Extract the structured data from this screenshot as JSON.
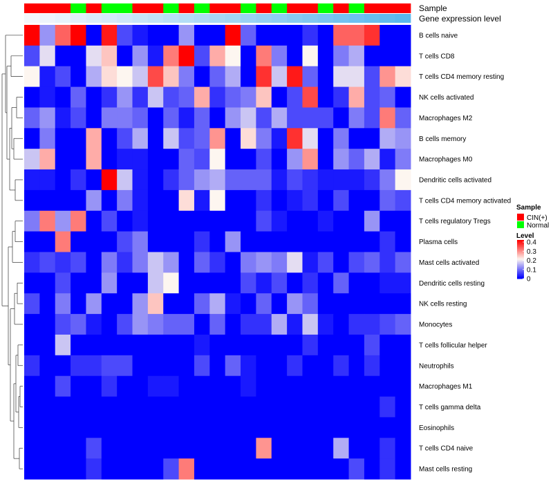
{
  "chart_data": {
    "type": "heatmap",
    "annotation_tracks": [
      "Sample",
      "Gene expression level"
    ],
    "sample_groups": [
      "CIN(+)",
      "CIN(+)",
      "CIN(+)",
      "Normal",
      "CIN(+)",
      "Normal",
      "Normal",
      "CIN(+)",
      "CIN(+)",
      "Normal",
      "CIN(+)",
      "Normal",
      "CIN(+)",
      "CIN(+)",
      "Normal",
      "CIN(+)",
      "Normal",
      "CIN(+)",
      "CIN(+)",
      "Normal",
      "CIN(+)",
      "Normal",
      "CIN(+)",
      "CIN(+)",
      "CIN(+)"
    ],
    "gene_expression_level": [
      0.0,
      0.04,
      0.08,
      0.12,
      0.16,
      0.2,
      0.24,
      0.28,
      0.32,
      0.36,
      0.4,
      0.44,
      0.48,
      0.52,
      0.56,
      0.6,
      0.64,
      0.68,
      0.72,
      0.76,
      0.8,
      0.84,
      0.88,
      0.92,
      0.96
    ],
    "rows": [
      "B cells naive",
      "T cells CD8",
      "T cells CD4 memory resting",
      "NK cells activated",
      "Macrophages M2",
      "B cells memory",
      "Macrophages M0",
      "Dendritic cells activated",
      "T cells CD4 memory activated",
      "T cells regulatory  Tregs",
      "Plasma cells",
      "Mast cells activated",
      "Dendritic cells resting",
      "NK cells resting",
      "Monocytes",
      "T cells follicular helper",
      "Neutrophils",
      "Macrophages M1",
      "T cells gamma delta",
      "Eosinophils",
      "T cells CD4 naive",
      "Mast cells resting"
    ],
    "values": [
      [
        0.4,
        0.12,
        0.32,
        0.4,
        0.0,
        0.38,
        0.06,
        0.02,
        0.0,
        0.0,
        0.12,
        0.0,
        0.0,
        0.4,
        0.08,
        0.0,
        0.0,
        0.0,
        0.04,
        0.0,
        0.32,
        0.32,
        0.36,
        0.0,
        0.0
      ],
      [
        0.06,
        0.18,
        0.0,
        0.0,
        0.18,
        0.24,
        0.0,
        0.12,
        0.02,
        0.3,
        0.4,
        0.06,
        0.26,
        0.2,
        0.0,
        0.3,
        0.1,
        0.0,
        0.2,
        0.0,
        0.1,
        0.14,
        0.0,
        0.0,
        0.0
      ],
      [
        0.2,
        0.02,
        0.06,
        0.0,
        0.14,
        0.22,
        0.2,
        0.16,
        0.34,
        0.24,
        0.1,
        0.0,
        0.08,
        0.14,
        0.0,
        0.36,
        0.16,
        0.38,
        0.08,
        0.0,
        0.18,
        0.18,
        0.06,
        0.28,
        0.22
      ],
      [
        0.0,
        0.02,
        0.0,
        0.08,
        0.0,
        0.04,
        0.12,
        0.04,
        0.16,
        0.06,
        0.08,
        0.26,
        0.04,
        0.08,
        0.1,
        0.24,
        0.0,
        0.06,
        0.34,
        0.0,
        0.04,
        0.26,
        0.06,
        0.08,
        0.0
      ],
      [
        0.08,
        0.12,
        0.02,
        0.06,
        0.0,
        0.1,
        0.1,
        0.08,
        0.0,
        0.08,
        0.02,
        0.08,
        0.0,
        0.12,
        0.16,
        0.06,
        0.14,
        0.06,
        0.06,
        0.06,
        0.0,
        0.1,
        0.06,
        0.3,
        0.08
      ],
      [
        0.0,
        0.1,
        0.0,
        0.0,
        0.26,
        0.0,
        0.06,
        0.14,
        0.0,
        0.16,
        0.06,
        0.08,
        0.28,
        0.0,
        0.22,
        0.1,
        0.02,
        0.36,
        0.18,
        0.0,
        0.1,
        0.0,
        0.0,
        0.14,
        0.12
      ],
      [
        0.16,
        0.26,
        0.0,
        0.0,
        0.26,
        0.0,
        0.02,
        0.02,
        0.0,
        0.0,
        0.08,
        0.06,
        0.2,
        0.0,
        0.0,
        0.06,
        0.0,
        0.12,
        0.28,
        0.0,
        0.12,
        0.08,
        0.14,
        0.02,
        0.1
      ],
      [
        0.02,
        0.02,
        0.0,
        0.04,
        0.0,
        0.4,
        0.16,
        0.02,
        0.0,
        0.04,
        0.08,
        0.12,
        0.14,
        0.08,
        0.08,
        0.08,
        0.02,
        0.06,
        0.04,
        0.02,
        0.02,
        0.02,
        0.04,
        0.1,
        0.2
      ],
      [
        0.0,
        0.0,
        0.0,
        0.0,
        0.12,
        0.0,
        0.1,
        0.02,
        0.0,
        0.0,
        0.22,
        0.02,
        0.2,
        0.0,
        0.0,
        0.04,
        0.0,
        0.02,
        0.04,
        0.0,
        0.06,
        0.0,
        0.0,
        0.08,
        0.06
      ],
      [
        0.1,
        0.3,
        0.12,
        0.3,
        0.0,
        0.06,
        0.0,
        0.02,
        0.0,
        0.0,
        0.0,
        0.0,
        0.0,
        0.0,
        0.0,
        0.06,
        0.02,
        0.0,
        0.0,
        0.02,
        0.0,
        0.0,
        0.12,
        0.0,
        0.0
      ],
      [
        0.0,
        0.0,
        0.3,
        0.0,
        0.0,
        0.0,
        0.06,
        0.1,
        0.0,
        0.0,
        0.0,
        0.04,
        0.0,
        0.12,
        0.0,
        0.0,
        0.0,
        0.0,
        0.0,
        0.0,
        0.0,
        0.0,
        0.0,
        0.04,
        0.0
      ],
      [
        0.04,
        0.06,
        0.04,
        0.06,
        0.0,
        0.1,
        0.04,
        0.1,
        0.16,
        0.12,
        0.0,
        0.08,
        0.04,
        0.0,
        0.1,
        0.12,
        0.1,
        0.18,
        0.02,
        0.06,
        0.0,
        0.06,
        0.08,
        0.04,
        0.08
      ],
      [
        0.0,
        0.0,
        0.06,
        0.0,
        0.0,
        0.12,
        0.0,
        0.0,
        0.16,
        0.2,
        0.0,
        0.0,
        0.0,
        0.0,
        0.06,
        0.02,
        0.06,
        0.0,
        0.04,
        0.0,
        0.08,
        0.0,
        0.0,
        0.02,
        0.02
      ],
      [
        0.06,
        0.0,
        0.1,
        0.0,
        0.12,
        0.0,
        0.0,
        0.12,
        0.24,
        0.0,
        0.0,
        0.08,
        0.14,
        0.02,
        0.0,
        0.08,
        0.0,
        0.12,
        0.08,
        0.0,
        0.0,
        0.0,
        0.0,
        0.0,
        0.0
      ],
      [
        0.0,
        0.0,
        0.06,
        0.08,
        0.02,
        0.0,
        0.06,
        0.12,
        0.1,
        0.08,
        0.08,
        0.0,
        0.08,
        0.0,
        0.04,
        0.04,
        0.14,
        0.02,
        0.16,
        0.02,
        0.0,
        0.04,
        0.04,
        0.06,
        0.08
      ],
      [
        0.0,
        0.0,
        0.16,
        0.0,
        0.0,
        0.0,
        0.0,
        0.0,
        0.0,
        0.0,
        0.0,
        0.02,
        0.0,
        0.0,
        0.0,
        0.0,
        0.0,
        0.0,
        0.04,
        0.0,
        0.0,
        0.0,
        0.06,
        0.0,
        0.0
      ],
      [
        0.04,
        0.0,
        0.0,
        0.04,
        0.04,
        0.06,
        0.06,
        0.0,
        0.0,
        0.0,
        0.0,
        0.06,
        0.0,
        0.08,
        0.02,
        0.0,
        0.0,
        0.04,
        0.0,
        0.0,
        0.04,
        0.0,
        0.04,
        0.0,
        0.0
      ],
      [
        0.0,
        0.0,
        0.06,
        0.0,
        0.0,
        0.04,
        0.0,
        0.0,
        0.02,
        0.02,
        0.0,
        0.0,
        0.0,
        0.0,
        0.02,
        0.0,
        0.0,
        0.0,
        0.0,
        0.0,
        0.0,
        0.0,
        0.0,
        0.0,
        0.0
      ],
      [
        0.0,
        0.0,
        0.0,
        0.0,
        0.0,
        0.0,
        0.0,
        0.0,
        0.0,
        0.0,
        0.0,
        0.0,
        0.0,
        0.0,
        0.0,
        0.0,
        0.0,
        0.0,
        0.0,
        0.0,
        0.0,
        0.0,
        0.0,
        0.04,
        0.0
      ],
      [
        0.0,
        0.0,
        0.0,
        0.0,
        0.0,
        0.0,
        0.0,
        0.0,
        0.0,
        0.0,
        0.0,
        0.0,
        0.0,
        0.0,
        0.0,
        0.0,
        0.0,
        0.0,
        0.0,
        0.0,
        0.0,
        0.0,
        0.0,
        0.0,
        0.0
      ],
      [
        0.0,
        0.0,
        0.0,
        0.0,
        0.06,
        0.0,
        0.0,
        0.0,
        0.0,
        0.0,
        0.0,
        0.0,
        0.0,
        0.0,
        0.0,
        0.28,
        0.0,
        0.0,
        0.0,
        0.0,
        0.14,
        0.0,
        0.0,
        0.04,
        0.0
      ],
      [
        0.0,
        0.0,
        0.0,
        0.0,
        0.04,
        0.0,
        0.0,
        0.0,
        0.0,
        0.06,
        0.3,
        0.0,
        0.0,
        0.0,
        0.0,
        0.0,
        0.0,
        0.0,
        0.0,
        0.0,
        0.0,
        0.06,
        0.0,
        0.04,
        0.0
      ]
    ],
    "colormap": {
      "low": "#0000ff",
      "mid": "#fdf6f0",
      "high": "#ff0000"
    },
    "legend": {
      "sample_title": "Sample",
      "sample_entries": [
        {
          "label": "CIN(+)",
          "color": "#ff0000"
        },
        {
          "label": "Normal",
          "color": "#00ff00"
        }
      ],
      "level_title": "Level",
      "level_ticks": [
        "0.4",
        "0.3",
        "0.2",
        "0.1",
        "0"
      ],
      "level_range": [
        0,
        0.4
      ]
    },
    "gene_expression_track_colors": {
      "low": "#f4f7fc",
      "high": "#54b5ec"
    }
  }
}
